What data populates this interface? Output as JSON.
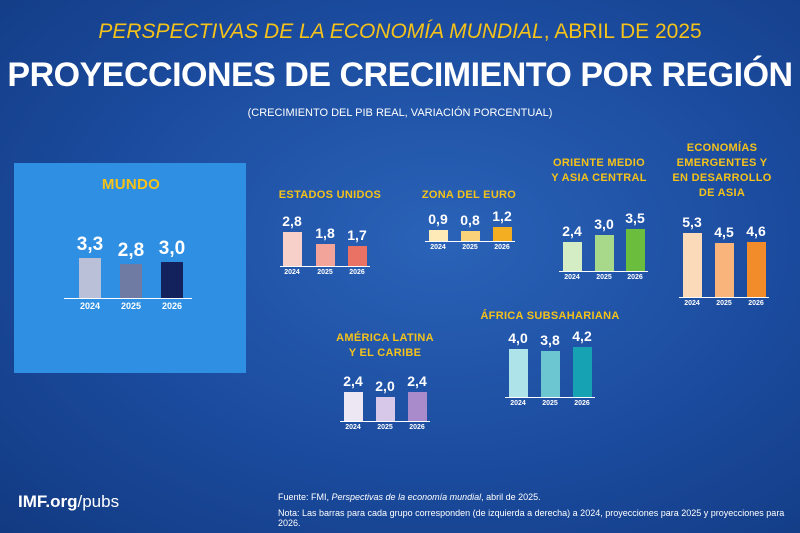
{
  "header": {
    "supertitle_italic": "PERSPECTIVAS DE LA ECONOMÍA MUNDIAL",
    "supertitle_rest": ", ABRIL DE 2025",
    "title": "PROYECCIONES DE CRECIMIENTO POR REGIÓN",
    "subtitle": "(CRECIMIENTO DEL PIB REAL, VARIACIÓN PORCENTUAL)"
  },
  "chart_data": [
    {
      "type": "bar",
      "title": "MUNDO",
      "categories": [
        "2024",
        "2025",
        "2026"
      ],
      "values": [
        3.3,
        2.8,
        3.0
      ],
      "value_labels": [
        "3,3",
        "2,8",
        "3,0"
      ],
      "colors": [
        "#b9c0d8",
        "#6f7ba3",
        "#13215c"
      ]
    },
    {
      "type": "bar",
      "title": "ESTADOS UNIDOS",
      "categories": [
        "2024",
        "2025",
        "2026"
      ],
      "values": [
        2.8,
        1.8,
        1.7
      ],
      "value_labels": [
        "2,8",
        "1,8",
        "1,7"
      ],
      "colors": [
        "#f8d0ca",
        "#f2a39a",
        "#ea7264"
      ]
    },
    {
      "type": "bar",
      "title": "ZONA DEL EURO",
      "categories": [
        "2024",
        "2025",
        "2026"
      ],
      "values": [
        0.9,
        0.8,
        1.2
      ],
      "value_labels": [
        "0,9",
        "0,8",
        "1,2"
      ],
      "colors": [
        "#fdeab6",
        "#f9d27a",
        "#f3ae22"
      ]
    },
    {
      "type": "bar",
      "title": "ORIENTE MEDIO\nY ASIA CENTRAL",
      "categories": [
        "2024",
        "2025",
        "2026"
      ],
      "values": [
        2.4,
        3.0,
        3.5
      ],
      "value_labels": [
        "2,4",
        "3,0",
        "3,5"
      ],
      "colors": [
        "#d4edc4",
        "#a8d889",
        "#6bbd3e"
      ]
    },
    {
      "type": "bar",
      "title": "ECONOMÍAS\nEMERGENTES Y\nEN DESARROLLO\nDE ASIA",
      "categories": [
        "2024",
        "2025",
        "2026"
      ],
      "values": [
        5.3,
        4.5,
        4.6
      ],
      "value_labels": [
        "5,3",
        "4,5",
        "4,6"
      ],
      "colors": [
        "#fbdab9",
        "#f8b47a",
        "#f28c2b"
      ]
    },
    {
      "type": "bar",
      "title": "AMÉRICA LATINA\nY EL CARIBE",
      "categories": [
        "2024",
        "2025",
        "2026"
      ],
      "values": [
        2.4,
        2.0,
        2.4
      ],
      "value_labels": [
        "2,4",
        "2,0",
        "2,4"
      ],
      "colors": [
        "#ede7f4",
        "#d7c7e9",
        "#a98bcc"
      ]
    },
    {
      "type": "bar",
      "title": "ÁFRICA SUBSAHARIANA",
      "categories": [
        "2024",
        "2025",
        "2026"
      ],
      "values": [
        4.0,
        3.8,
        4.2
      ],
      "value_labels": [
        "4,0",
        "3,8",
        "4,2"
      ],
      "colors": [
        "#aee3ea",
        "#6cc6d2",
        "#17a2b3"
      ]
    }
  ],
  "footer": {
    "brand_bold": "IMF.org",
    "brand_rest": "/pubs",
    "source_start": "Fuente: FMI, ",
    "source_italic": "Perspectivas de la economía mundial",
    "source_end": ", abril de 2025.",
    "note": "Nota: Las barras para cada grupo corresponden (de izquierda a derecha) a 2024, proyecciones para 2025 y proyecciones para 2026."
  }
}
